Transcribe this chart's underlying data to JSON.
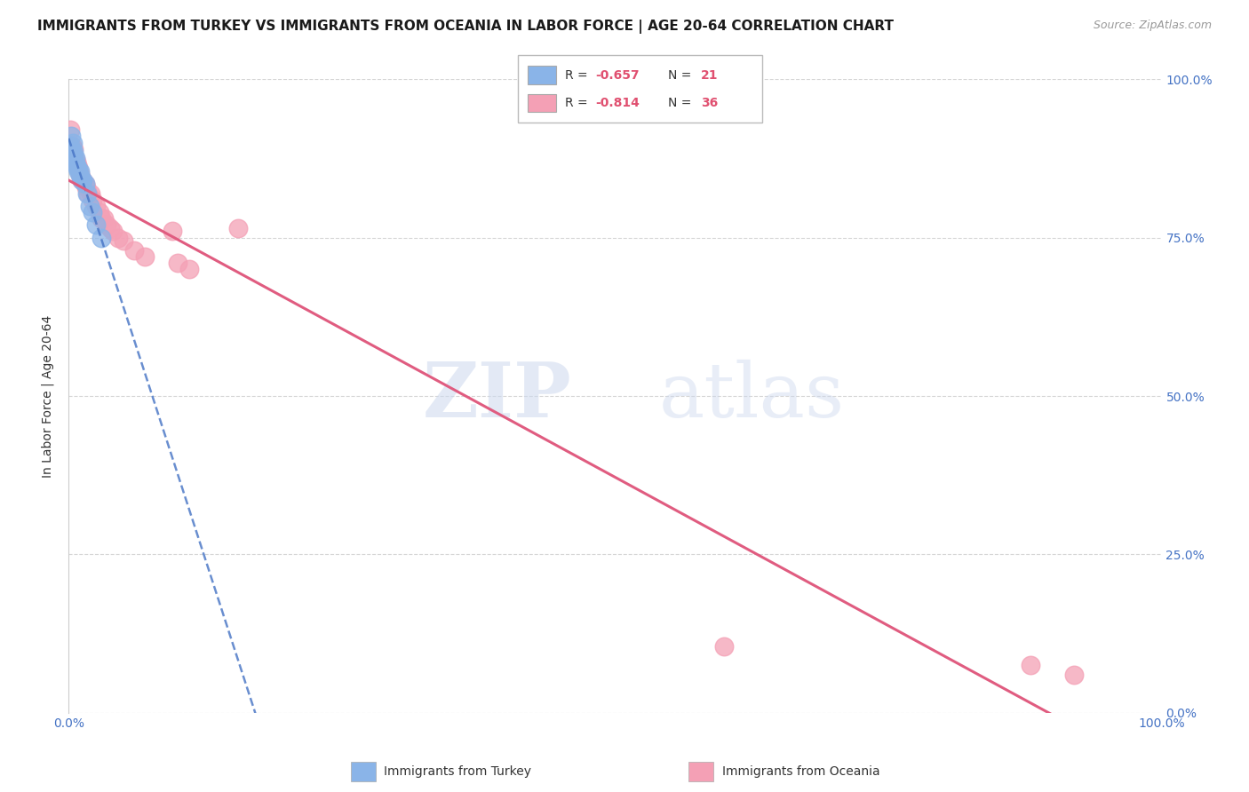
{
  "title": "IMMIGRANTS FROM TURKEY VS IMMIGRANTS FROM OCEANIA IN LABOR FORCE | AGE 20-64 CORRELATION CHART",
  "source": "Source: ZipAtlas.com",
  "ylabel": "In Labor Force | Age 20-64",
  "xlim": [
    0.0,
    1.0
  ],
  "ylim": [
    0.0,
    1.0
  ],
  "xticks": [
    0.0,
    1.0
  ],
  "yticks": [
    0.0,
    0.25,
    0.5,
    0.75,
    1.0
  ],
  "xtick_labels": [
    "0.0%",
    "100.0%"
  ],
  "ytick_labels_right": [
    "0.0%",
    "25.0%",
    "50.0%",
    "75.0%",
    "100.0%"
  ],
  "legend_r1": "-0.657",
  "legend_n1": "21",
  "legend_r2": "-0.814",
  "legend_n2": "36",
  "turkey_color": "#8ab4e8",
  "oceania_color": "#f4a0b5",
  "turkey_line_color": "#4472c4",
  "oceania_line_color": "#e05c80",
  "watermark_zip": "ZIP",
  "watermark_atlas": "atlas",
  "background_color": "#ffffff",
  "grid_color": "#cccccc",
  "turkey_x": [
    0.001,
    0.002,
    0.003,
    0.004,
    0.004,
    0.005,
    0.005,
    0.006,
    0.007,
    0.008,
    0.009,
    0.01,
    0.011,
    0.012,
    0.013,
    0.015,
    0.017,
    0.019,
    0.022,
    0.025,
    0.03
  ],
  "turkey_y": [
    0.895,
    0.91,
    0.885,
    0.9,
    0.875,
    0.875,
    0.885,
    0.875,
    0.865,
    0.86,
    0.855,
    0.855,
    0.845,
    0.84,
    0.84,
    0.835,
    0.82,
    0.8,
    0.79,
    0.77,
    0.75
  ],
  "oceania_x": [
    0.001,
    0.002,
    0.003,
    0.004,
    0.005,
    0.005,
    0.006,
    0.007,
    0.008,
    0.009,
    0.01,
    0.011,
    0.012,
    0.013,
    0.015,
    0.016,
    0.018,
    0.02,
    0.022,
    0.025,
    0.028,
    0.03,
    0.032,
    0.035,
    0.038,
    0.04,
    0.045,
    0.05,
    0.06,
    0.07,
    0.095,
    0.1,
    0.11,
    0.6,
    0.88,
    0.92
  ],
  "oceania_y": [
    0.92,
    0.895,
    0.895,
    0.885,
    0.88,
    0.89,
    0.87,
    0.87,
    0.865,
    0.86,
    0.85,
    0.845,
    0.84,
    0.84,
    0.835,
    0.83,
    0.82,
    0.82,
    0.81,
    0.8,
    0.79,
    0.78,
    0.78,
    0.77,
    0.765,
    0.76,
    0.75,
    0.745,
    0.73,
    0.72,
    0.76,
    0.71,
    0.7,
    0.105,
    0.075,
    0.06
  ],
  "oceania_outlier_x": [
    0.155
  ],
  "oceania_outlier_y": [
    0.765
  ],
  "title_fontsize": 11,
  "label_fontsize": 10,
  "tick_fontsize": 10,
  "marker_size": 220
}
